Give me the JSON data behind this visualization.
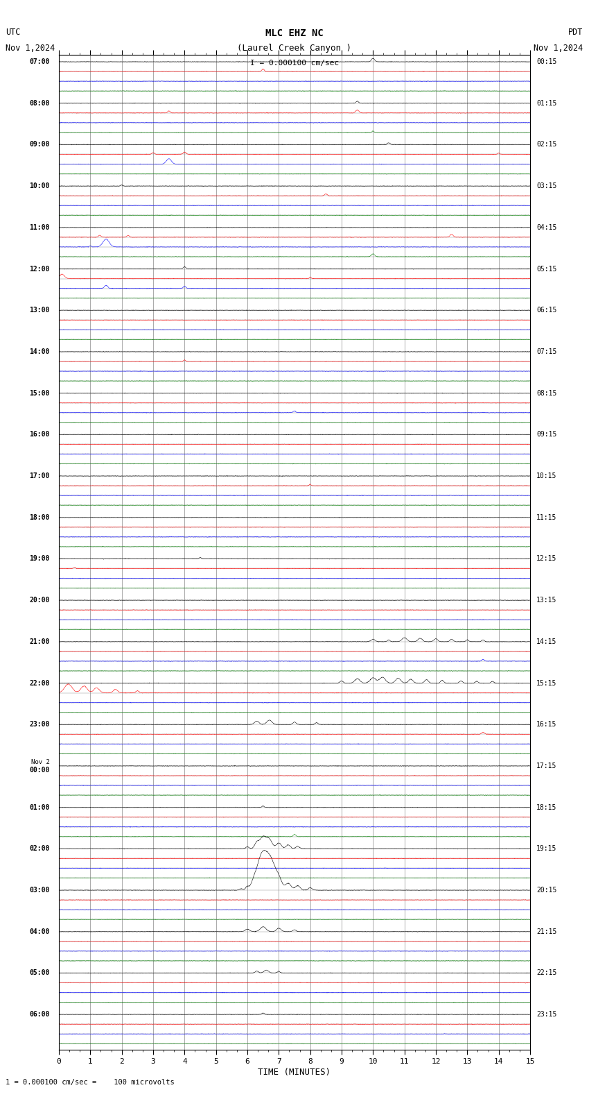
{
  "title_line1": "MLC EHZ NC",
  "title_line2": "(Laurel Creek Canyon )",
  "title_line3": "I = 0.000100 cm/sec",
  "left_label_line1": "UTC",
  "left_label_line2": "Nov 1,2024",
  "right_label_line1": "PDT",
  "right_label_line2": "Nov 1,2024",
  "bottom_label": "TIME (MINUTES)",
  "bottom_note": "1 = 0.000100 cm/sec =    100 microvolts",
  "num_rows": 24,
  "colors": [
    "black",
    "red",
    "blue",
    "green"
  ],
  "background_color": "white",
  "grid_color": "#888888",
  "left_time_labels": [
    "07:00",
    "08:00",
    "09:00",
    "10:00",
    "11:00",
    "12:00",
    "13:00",
    "14:00",
    "15:00",
    "16:00",
    "17:00",
    "18:00",
    "19:00",
    "20:00",
    "21:00",
    "22:00",
    "23:00",
    "Nov 2\n00:00",
    "01:00",
    "02:00",
    "03:00",
    "04:00",
    "05:00",
    "06:00"
  ],
  "right_time_labels": [
    "00:15",
    "01:15",
    "02:15",
    "03:15",
    "04:15",
    "05:15",
    "06:15",
    "07:15",
    "08:15",
    "09:15",
    "10:15",
    "11:15",
    "12:15",
    "13:15",
    "14:15",
    "15:15",
    "16:15",
    "17:15",
    "18:15",
    "19:15",
    "20:15",
    "21:15",
    "22:15",
    "23:15"
  ],
  "noise_amp": 0.012,
  "trace_sep": 1.0,
  "row_sep": 0.25
}
